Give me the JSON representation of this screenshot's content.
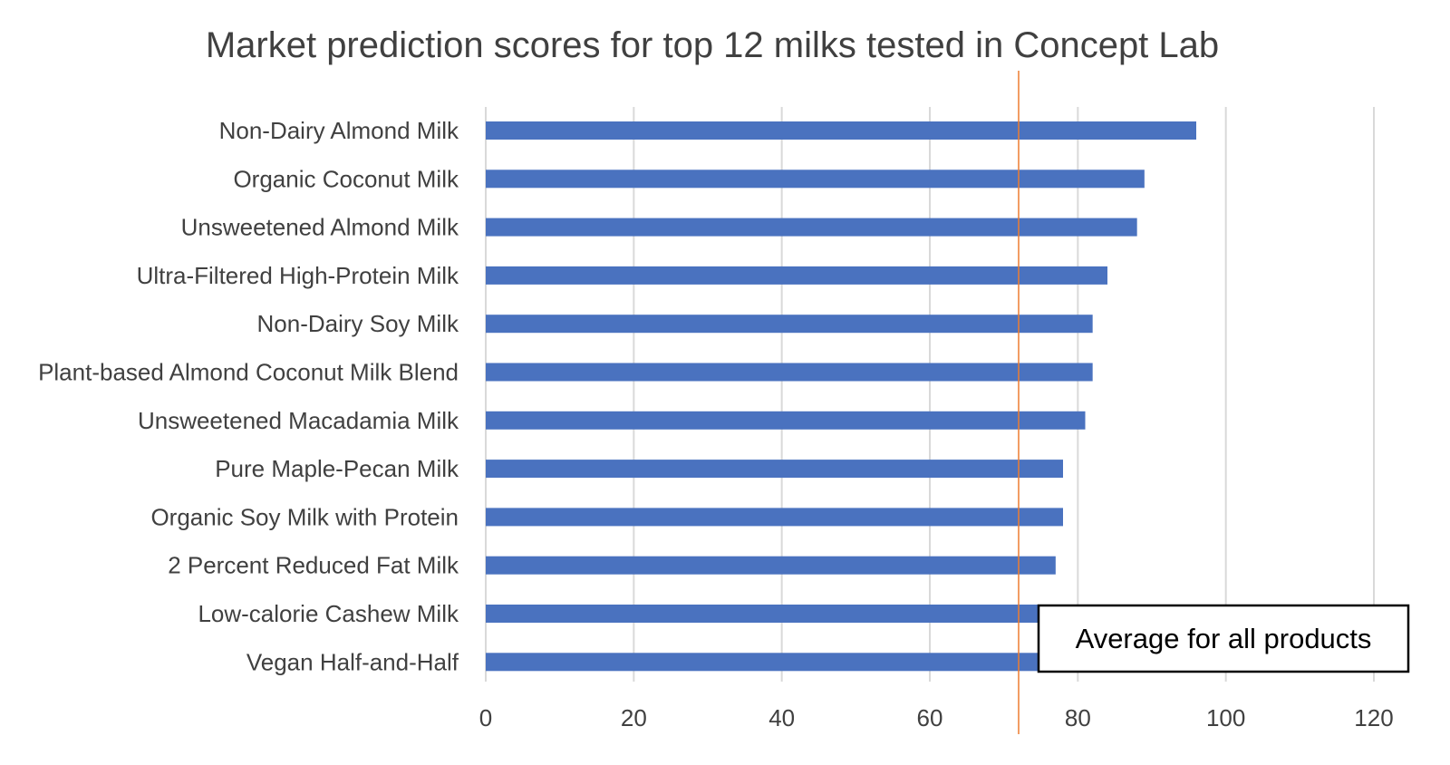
{
  "chart_data": {
    "type": "bar",
    "orientation": "horizontal",
    "title": "Market prediction scores for top 12 milks tested in Concept Lab",
    "categories": [
      "Non-Dairy Almond Milk",
      "Organic Coconut Milk",
      "Unsweetened Almond Milk",
      "Ultra-Filtered High-Protein Milk",
      "Non-Dairy Soy Milk",
      "Plant-based Almond Coconut Milk Blend",
      "Unsweetened Macadamia Milk",
      "Pure Maple-Pecan Milk",
      "Organic Soy Milk with Protein",
      "2 Percent Reduced Fat Milk",
      "Low-calorie Cashew Milk",
      "Vegan Half-and-Half"
    ],
    "values": [
      96,
      89,
      88,
      84,
      82,
      82,
      81,
      78,
      78,
      77,
      75,
      75
    ],
    "xlim": [
      0,
      120
    ],
    "xticks": [
      0,
      20,
      40,
      60,
      80,
      100,
      120
    ],
    "xlabel": "",
    "ylabel": "",
    "grid": true,
    "reference_line": {
      "value": 72,
      "label": "Average for all products"
    },
    "colors": {
      "bar": "#4a72bf",
      "reference_line": "#ed7d31",
      "grid": "#d9d9d9"
    }
  }
}
